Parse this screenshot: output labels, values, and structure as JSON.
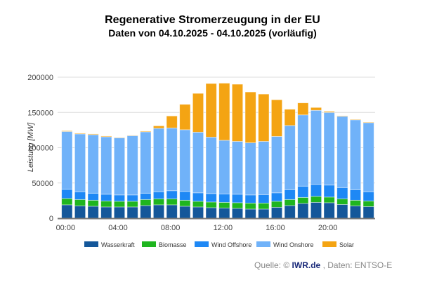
{
  "chart_data": {
    "type": "bar",
    "stacked": true,
    "title": "Regenerative Stromerzeugung in der EU",
    "subtitle": "Daten von 04.10.2025 - 04.10.2025 (vorläufig)",
    "xlabel": "",
    "ylabel": "Leistung [MW]",
    "ylim": [
      0,
      200000
    ],
    "yticks": [
      "0",
      "50000",
      "100000",
      "150000",
      "200000"
    ],
    "ytick_values": [
      0,
      50000,
      100000,
      150000,
      200000
    ],
    "grid": true,
    "legend_position": "bottom",
    "categories": [
      "00:00",
      "01:00",
      "02:00",
      "03:00",
      "04:00",
      "05:00",
      "06:00",
      "07:00",
      "08:00",
      "09:00",
      "10:00",
      "11:00",
      "12:00",
      "13:00",
      "14:00",
      "15:00",
      "16:00",
      "17:00",
      "18:00",
      "19:00",
      "20:00",
      "21:00",
      "22:00",
      "23:00"
    ],
    "xtick_labels": [
      {
        "index": 0,
        "label": "00:00"
      },
      {
        "index": 4,
        "label": "04:00"
      },
      {
        "index": 8,
        "label": "08:00"
      },
      {
        "index": 12,
        "label": "12:00"
      },
      {
        "index": 16,
        "label": "16:00"
      },
      {
        "index": 20,
        "label": "20:00"
      }
    ],
    "series": [
      {
        "name": "Wasserkraft",
        "color": "#14579a",
        "values": [
          19000,
          17500,
          17000,
          16000,
          16000,
          16000,
          18000,
          19000,
          19000,
          17000,
          16000,
          15000,
          14500,
          14000,
          13000,
          13000,
          15500,
          18000,
          21000,
          22500,
          22000,
          19500,
          17500,
          16500
        ]
      },
      {
        "name": "Biomasse",
        "color": "#1fb51f",
        "values": [
          9000,
          9000,
          8500,
          8500,
          8000,
          8000,
          8500,
          8500,
          8500,
          8500,
          8000,
          8000,
          8000,
          8000,
          8500,
          8500,
          8500,
          8500,
          8500,
          8500,
          8000,
          8000,
          8000,
          8000
        ]
      },
      {
        "name": "Wind Offshore",
        "color": "#1e88f5",
        "values": [
          13000,
          11000,
          10000,
          9500,
          9000,
          9000,
          9000,
          10000,
          11500,
          12500,
          12000,
          12000,
          12000,
          12000,
          11500,
          12000,
          12000,
          14000,
          16000,
          17000,
          17000,
          16000,
          15000,
          13000
        ]
      },
      {
        "name": "Wind Onshore",
        "color": "#70b2f9",
        "values": [
          82000,
          82000,
          83000,
          81500,
          81000,
          84000,
          87000,
          90000,
          89000,
          87500,
          86000,
          80000,
          76000,
          75000,
          74000,
          75500,
          80000,
          91000,
          101000,
          105000,
          103000,
          101000,
          99000,
          98000
        ]
      },
      {
        "name": "Solar",
        "color": "#f4a413",
        "values": [
          1000,
          1000,
          1000,
          1000,
          500,
          500,
          1000,
          3500,
          17000,
          36000,
          55000,
          76000,
          81000,
          81000,
          72000,
          67000,
          52000,
          23000,
          17000,
          4000,
          1500,
          800,
          800,
          800
        ]
      }
    ]
  },
  "source": {
    "prefix": "Quelle: ©",
    "brand": "IWR.de",
    "suffix": ", Daten: ENTSO-E"
  }
}
